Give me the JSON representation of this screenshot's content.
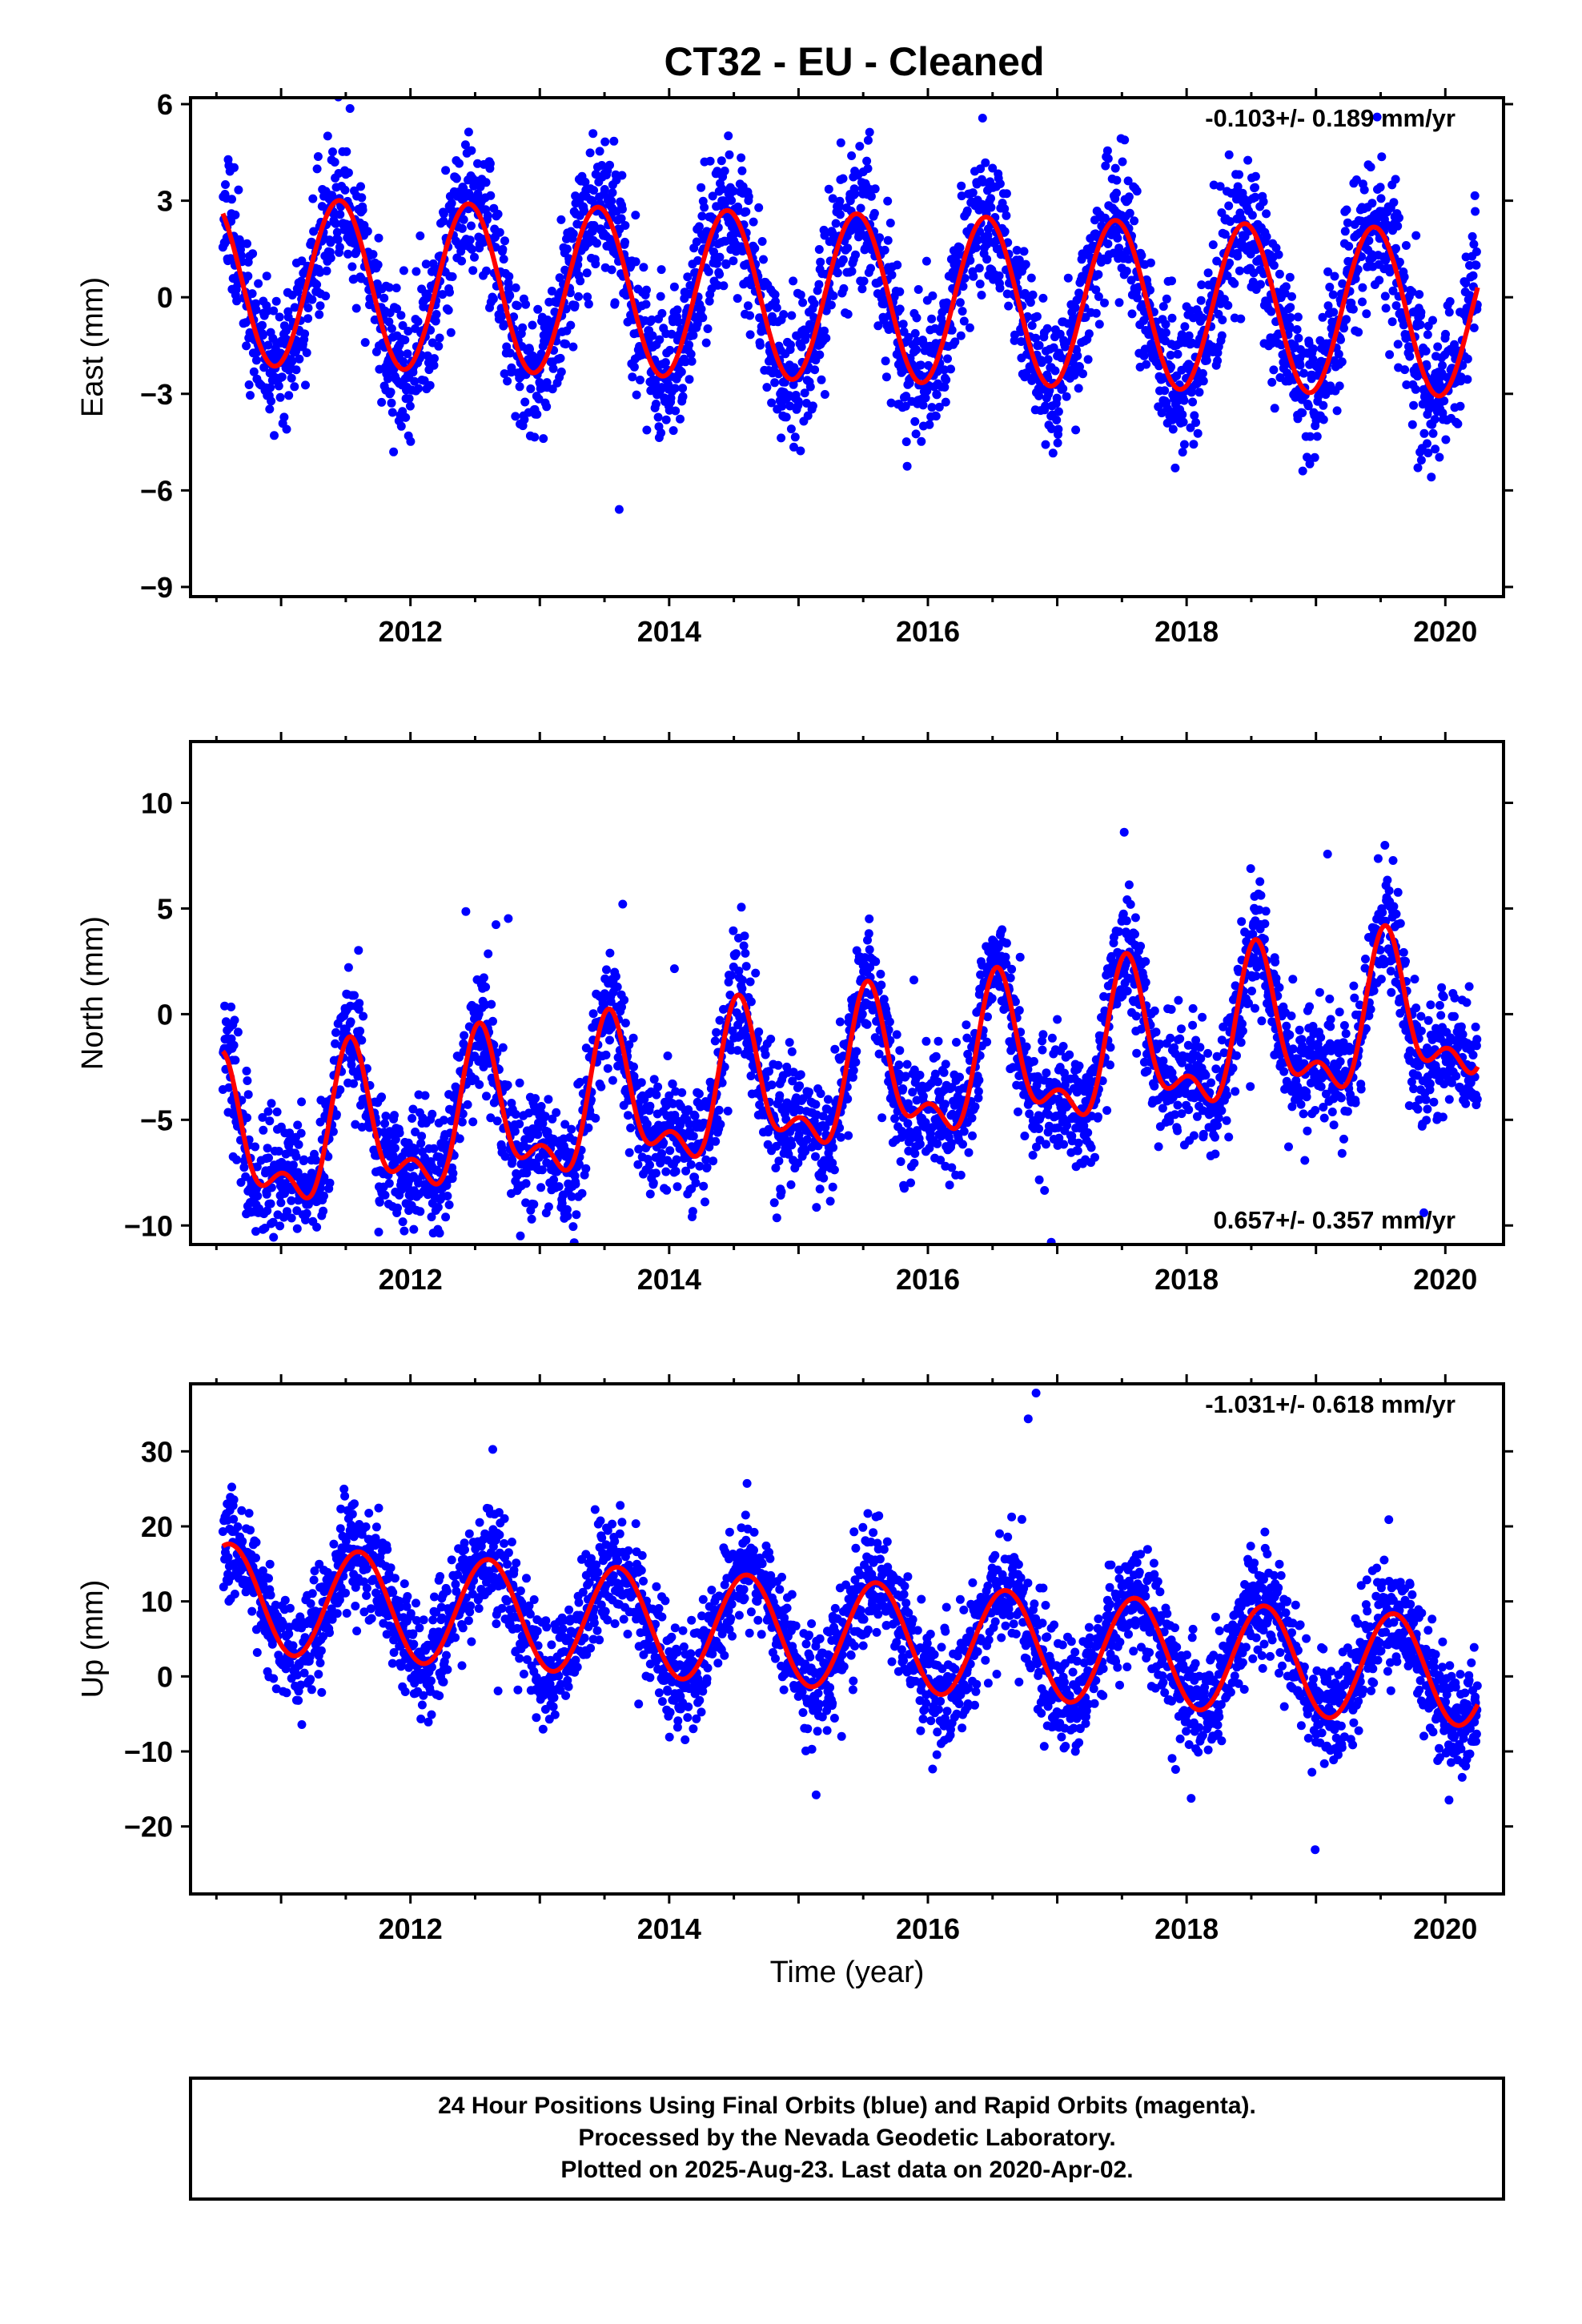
{
  "title": "CT32  - EU - Cleaned",
  "colors": {
    "final": "#0000ff",
    "rapid": "#ff00ff",
    "model": "#ff0000",
    "frame": "#000000"
  },
  "footer": {
    "lines": [
      "24 Hour Positions Using Final Orbits (blue) and Rapid Orbits (magenta).",
      "Processed by the Nevada Geodetic Laboratory.",
      "Plotted on 2025-Aug-23. Last data on 2020-Apr-02."
    ]
  },
  "chart_data": [
    {
      "type": "scatter",
      "ylabel": "East (mm)",
      "xlabel": "",
      "rate_text": "-0.103+/- 0.189 mm/yr",
      "rate_position": "top-right",
      "xlim": [
        2010.3,
        2020.45
      ],
      "ylim": [
        -9.3,
        6.2
      ],
      "xticks": [
        "2012",
        "2014",
        "2016",
        "2018",
        "2020"
      ],
      "yticks": [
        "6",
        "3",
        "0",
        "-3",
        "-6",
        "-9"
      ],
      "series": [
        {
          "role": "daily-positions",
          "style": "blue-dots",
          "model": {
            "start": 2010.55,
            "end": 2020.25,
            "offset": 0.0,
            "trend": -0.103,
            "annual_amp": 2.6,
            "annual_peak": 2010.45,
            "semi_amp": 0.0,
            "semi_phase": 0.0,
            "noise": 1.1,
            "seed": 11
          }
        },
        {
          "role": "fitted-model",
          "style": "red-line",
          "model": {
            "start": 2010.55,
            "end": 2020.25,
            "offset": 0.0,
            "trend": -0.103,
            "annual_amp": 2.6,
            "annual_peak": 2010.45,
            "semi_amp": 0.0,
            "semi_phase": 0.0
          }
        }
      ]
    },
    {
      "type": "scatter",
      "ylabel": "North (mm)",
      "xlabel": "",
      "rate_text": "0.657+/- 0.357 mm/yr",
      "rate_position": "bottom-right",
      "xlim": [
        2010.3,
        2020.45
      ],
      "ylim": [
        -10.9,
        12.9
      ],
      "xticks": [
        "2012",
        "2014",
        "2016",
        "2018",
        "2020"
      ],
      "yticks": [
        "10",
        "5",
        "0",
        "-5",
        "-10"
      ],
      "series": [
        {
          "role": "daily-positions",
          "style": "blue-dots",
          "model": {
            "start": 2010.55,
            "end": 2020.25,
            "offset": -3.2,
            "trend": 0.657,
            "annual_amp": 3.1,
            "annual_peak": 2010.55,
            "semi_amp": 1.6,
            "semi_phase": 0.3,
            "noise": 1.4,
            "seed": 23
          }
        },
        {
          "role": "fitted-model",
          "style": "red-line",
          "model": {
            "start": 2010.55,
            "end": 2020.25,
            "offset": -3.2,
            "trend": 0.657,
            "annual_amp": 3.1,
            "annual_peak": 2010.55,
            "semi_amp": 1.6,
            "semi_phase": 0.3
          }
        }
      ]
    },
    {
      "type": "scatter",
      "ylabel": "Up (mm)",
      "xlabel": "Time (year)",
      "rate_text": "-1.031+/- 0.618 mm/yr",
      "rate_position": "top-right",
      "xlim": [
        2010.3,
        2020.45
      ],
      "ylim": [
        -29,
        39
      ],
      "xticks": [
        "2012",
        "2014",
        "2016",
        "2018",
        "2020"
      ],
      "yticks": [
        "30",
        "20",
        "10",
        "0",
        "-10",
        "-20"
      ],
      "series": [
        {
          "role": "daily-positions",
          "style": "blue-dots",
          "model": {
            "start": 2010.55,
            "end": 2020.25,
            "offset": 5.5,
            "trend": -1.031,
            "annual_amp": 7.2,
            "annual_peak": 2010.6,
            "semi_amp": 0.0,
            "semi_phase": 0.0,
            "noise": 3.6,
            "seed": 37
          }
        },
        {
          "role": "fitted-model",
          "style": "red-line",
          "model": {
            "start": 2010.55,
            "end": 2020.25,
            "offset": 5.5,
            "trend": -1.031,
            "annual_amp": 7.2,
            "annual_peak": 2010.6,
            "semi_amp": 0.0,
            "semi_phase": 0.0
          }
        }
      ]
    }
  ]
}
